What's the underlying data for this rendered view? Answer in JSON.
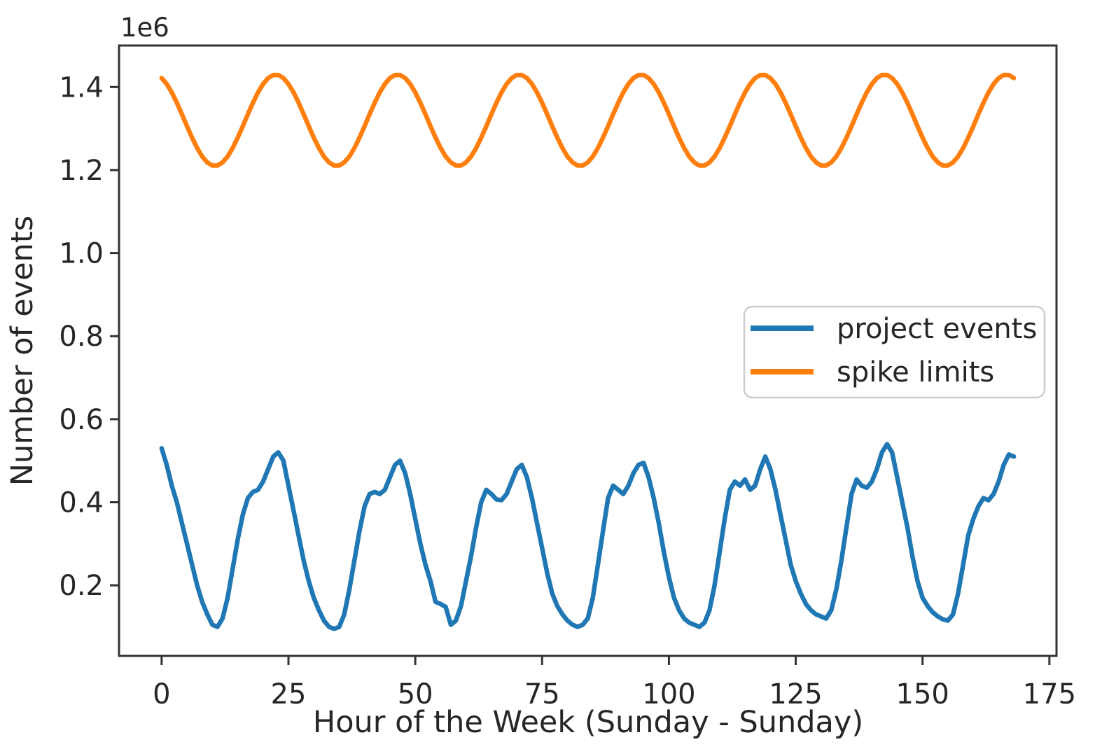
{
  "figure": {
    "background": "#ffffff",
    "axis_color": "#333333",
    "text_color": "#262626",
    "legend_border_color": "#cccccc"
  },
  "chart_data": {
    "type": "line",
    "title": "",
    "xlabel": "Hour of the Week (Sunday - Sunday)",
    "ylabel": "Number of events",
    "y_offset_label": "1e6",
    "value_unit": "1e6 events",
    "grid": false,
    "xlim": [
      -8.4,
      176.4
    ],
    "ylim": [
      0.03,
      1.5
    ],
    "x_start": 0,
    "x_step": 1,
    "x_end": 168,
    "xticks": {
      "values": [
        0,
        25,
        50,
        75,
        100,
        125,
        150,
        175
      ],
      "labels": [
        "0",
        "25",
        "50",
        "75",
        "100",
        "125",
        "150",
        "175"
      ]
    },
    "yticks": {
      "values": [
        0.2,
        0.4,
        0.6,
        0.8,
        1.0,
        1.2,
        1.4
      ],
      "labels": [
        "0.2",
        "0.4",
        "0.6",
        "0.8",
        "1.0",
        "1.2",
        "1.4"
      ]
    },
    "legend": {
      "position": "center-right"
    },
    "series": [
      {
        "name": "project events",
        "color": "#1f77b4",
        "values": [
          0.53,
          0.49,
          0.44,
          0.4,
          0.35,
          0.3,
          0.25,
          0.2,
          0.16,
          0.13,
          0.105,
          0.1,
          0.12,
          0.17,
          0.24,
          0.31,
          0.37,
          0.41,
          0.425,
          0.43,
          0.45,
          0.48,
          0.51,
          0.52,
          0.5,
          0.44,
          0.38,
          0.32,
          0.26,
          0.21,
          0.17,
          0.14,
          0.115,
          0.1,
          0.095,
          0.1,
          0.13,
          0.19,
          0.26,
          0.33,
          0.39,
          0.42,
          0.425,
          0.42,
          0.43,
          0.46,
          0.49,
          0.5,
          0.47,
          0.42,
          0.36,
          0.3,
          0.25,
          0.21,
          0.16,
          0.155,
          0.148,
          0.105,
          0.115,
          0.15,
          0.21,
          0.27,
          0.34,
          0.4,
          0.43,
          0.42,
          0.407,
          0.405,
          0.42,
          0.45,
          0.48,
          0.49,
          0.46,
          0.41,
          0.35,
          0.29,
          0.23,
          0.18,
          0.15,
          0.13,
          0.115,
          0.105,
          0.1,
          0.105,
          0.12,
          0.17,
          0.25,
          0.33,
          0.41,
          0.44,
          0.43,
          0.42,
          0.44,
          0.47,
          0.49,
          0.495,
          0.46,
          0.41,
          0.35,
          0.28,
          0.22,
          0.17,
          0.14,
          0.12,
          0.11,
          0.105,
          0.1,
          0.11,
          0.14,
          0.2,
          0.28,
          0.36,
          0.43,
          0.45,
          0.44,
          0.455,
          0.43,
          0.44,
          0.48,
          0.51,
          0.48,
          0.43,
          0.37,
          0.31,
          0.25,
          0.21,
          0.18,
          0.155,
          0.14,
          0.13,
          0.125,
          0.12,
          0.14,
          0.19,
          0.26,
          0.34,
          0.42,
          0.455,
          0.44,
          0.435,
          0.45,
          0.48,
          0.52,
          0.54,
          0.52,
          0.46,
          0.4,
          0.34,
          0.27,
          0.21,
          0.17,
          0.15,
          0.135,
          0.125,
          0.118,
          0.115,
          0.13,
          0.18,
          0.25,
          0.32,
          0.36,
          0.39,
          0.41,
          0.405,
          0.42,
          0.45,
          0.49,
          0.515,
          0.51
        ]
      },
      {
        "name": "spike limits",
        "color": "#ff7f0e",
        "values": [
          1.4216,
          1.4073,
          1.387,
          1.3621,
          1.3344,
          1.3056,
          1.2779,
          1.253,
          1.2327,
          1.2184,
          1.2109,
          1.2109,
          1.2184,
          1.2327,
          1.253,
          1.2779,
          1.3056,
          1.3344,
          1.3621,
          1.387,
          1.4073,
          1.4216,
          1.4291,
          1.4291,
          1.4216,
          1.4073,
          1.387,
          1.3621,
          1.3344,
          1.3056,
          1.2779,
          1.253,
          1.2327,
          1.2184,
          1.2109,
          1.2109,
          1.2184,
          1.2327,
          1.253,
          1.2779,
          1.3056,
          1.3344,
          1.3621,
          1.387,
          1.4073,
          1.4216,
          1.4291,
          1.4291,
          1.4216,
          1.4073,
          1.387,
          1.3621,
          1.3344,
          1.3056,
          1.2779,
          1.253,
          1.2327,
          1.2184,
          1.2109,
          1.2109,
          1.2184,
          1.2327,
          1.253,
          1.2779,
          1.3056,
          1.3344,
          1.3621,
          1.387,
          1.4073,
          1.4216,
          1.4291,
          1.4291,
          1.4216,
          1.4073,
          1.387,
          1.3621,
          1.3344,
          1.3056,
          1.2779,
          1.253,
          1.2327,
          1.2184,
          1.2109,
          1.2109,
          1.2184,
          1.2327,
          1.253,
          1.2779,
          1.3056,
          1.3344,
          1.3621,
          1.387,
          1.4073,
          1.4216,
          1.4291,
          1.4291,
          1.4216,
          1.4073,
          1.387,
          1.3621,
          1.3344,
          1.3056,
          1.2779,
          1.253,
          1.2327,
          1.2184,
          1.2109,
          1.2109,
          1.2184,
          1.2327,
          1.253,
          1.2779,
          1.3056,
          1.3344,
          1.3621,
          1.387,
          1.4073,
          1.4216,
          1.4291,
          1.4291,
          1.4216,
          1.4073,
          1.387,
          1.3621,
          1.3344,
          1.3056,
          1.2779,
          1.253,
          1.2327,
          1.2184,
          1.2109,
          1.2109,
          1.2184,
          1.2327,
          1.253,
          1.2779,
          1.3056,
          1.3344,
          1.3621,
          1.387,
          1.4073,
          1.4216,
          1.4291,
          1.4291,
          1.4216,
          1.4073,
          1.387,
          1.3621,
          1.3344,
          1.3056,
          1.2779,
          1.253,
          1.2327,
          1.2184,
          1.2109,
          1.2109,
          1.2184,
          1.2327,
          1.253,
          1.2779,
          1.3056,
          1.3344,
          1.3621,
          1.387,
          1.4073,
          1.4216,
          1.4291,
          1.4291,
          1.4216
        ]
      }
    ]
  }
}
